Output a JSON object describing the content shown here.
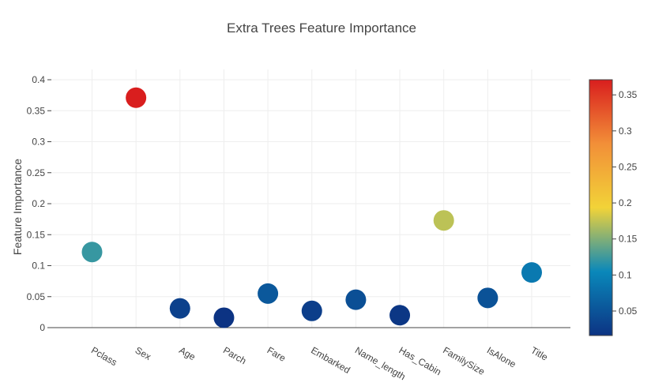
{
  "chart_data": {
    "type": "scatter",
    "title": "Extra Trees Feature Importance",
    "ylabel": "Feature Importance",
    "xlabel": "",
    "categories": [
      "Pclass",
      "Sex",
      "Age",
      "Parch",
      "Fare",
      "Embarked",
      "Name_length",
      "Has_Cabin",
      "FamilySize",
      "IsAlone",
      "Title"
    ],
    "values": [
      0.122,
      0.371,
      0.031,
      0.016,
      0.055,
      0.027,
      0.045,
      0.02,
      0.173,
      0.048,
      0.089
    ],
    "ylim": [
      0,
      0.4
    ],
    "yticks": [
      0,
      0.05,
      0.1,
      0.15,
      0.2,
      0.25,
      0.3,
      0.35,
      0.4
    ],
    "ytick_labels": [
      "0",
      "0.05",
      "0.1",
      "0.15",
      "0.2",
      "0.25",
      "0.3",
      "0.35",
      "0.4"
    ],
    "grid": true,
    "marker_size": 26,
    "colorscale": "Portland",
    "colorbar": {
      "range": [
        0.016,
        0.371
      ],
      "ticks": [
        0.05,
        0.1,
        0.15,
        0.2,
        0.25,
        0.3,
        0.35
      ],
      "tick_labels": [
        "0.05",
        "0.1",
        "0.15",
        "0.2",
        "0.25",
        "0.3",
        "0.35"
      ],
      "placement": "right"
    },
    "colors": {
      "scale": [
        "#0c3383",
        "#0a88ba",
        "#f2d338",
        "#f28f38",
        "#d91e1e"
      ],
      "grid": "#eeeeee",
      "axis": "#444444"
    }
  }
}
